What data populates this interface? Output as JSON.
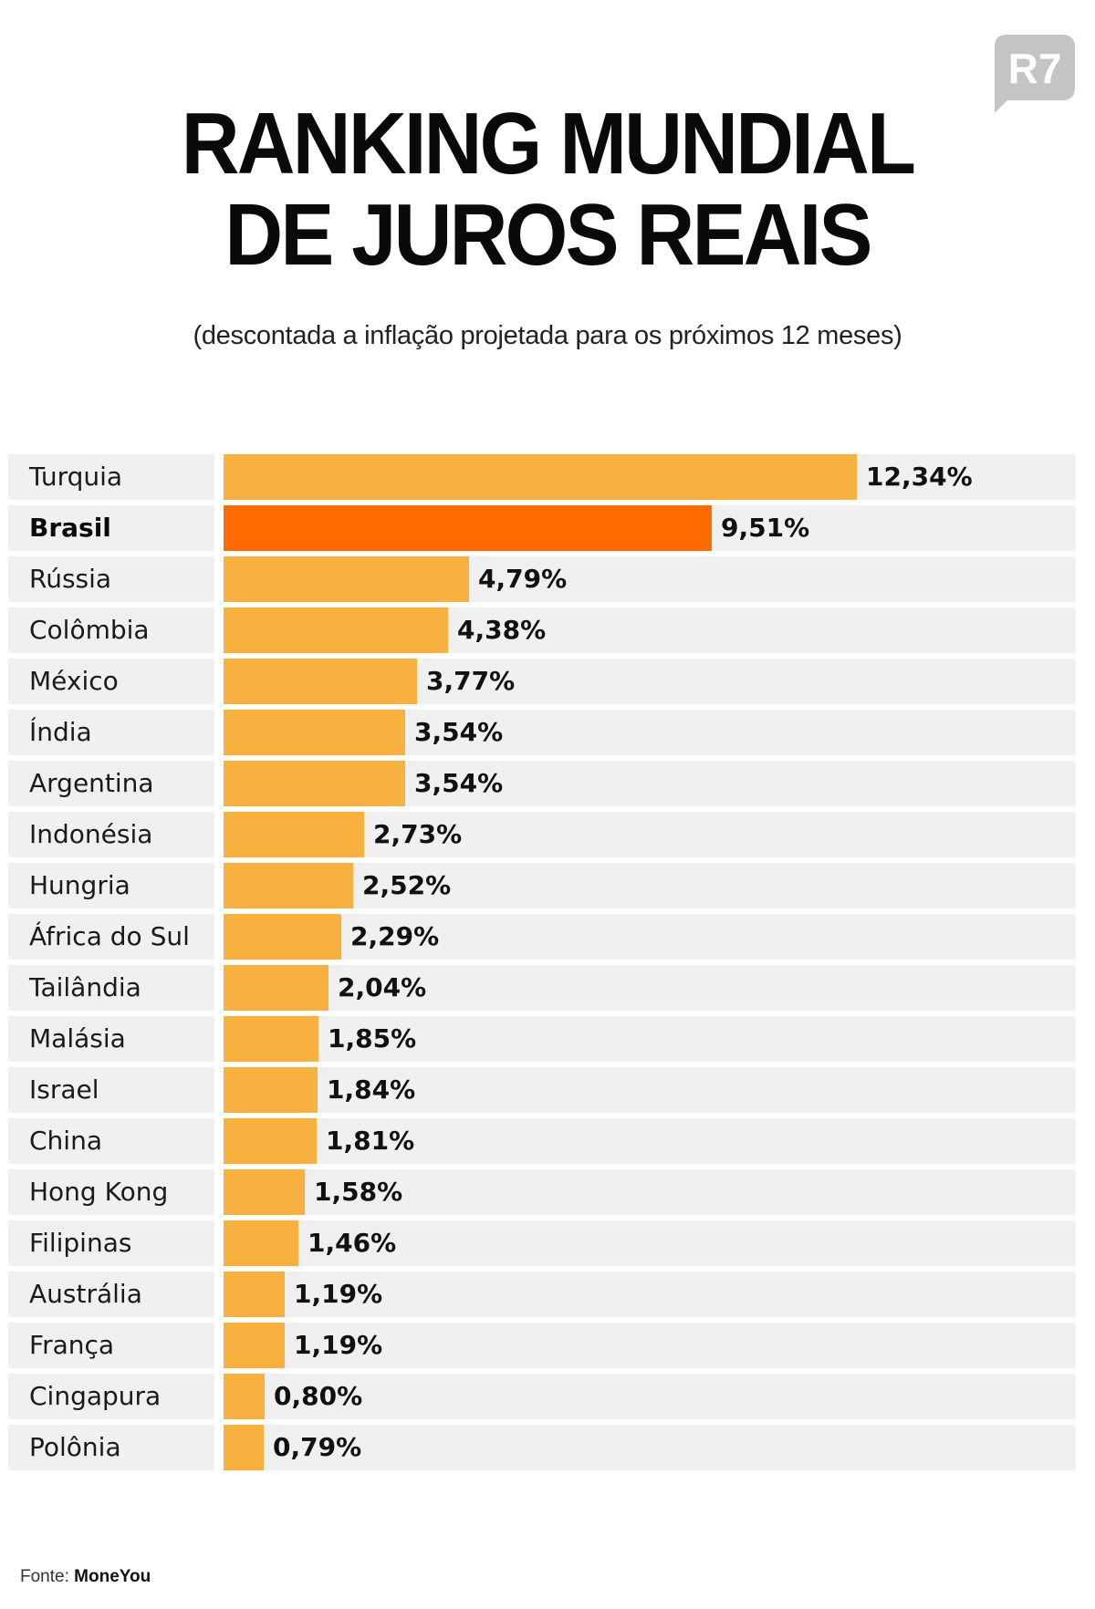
{
  "logo": {
    "text": "R7",
    "color": "#c4c4c4"
  },
  "header": {
    "title_line1": "RANKING MUNDIAL",
    "title_line2": "DE JUROS REAIS",
    "subtitle": "(descontada a inflação projetada para os próximos 12 meses)"
  },
  "colors": {
    "bar": "#f8b13e",
    "highlight_bar": "#ff6b00",
    "row_background": "#f0f0f0"
  },
  "chart_data": {
    "type": "bar",
    "orientation": "horizontal",
    "title": "RANKING MUNDIAL DE JUROS REAIS",
    "subtitle": "(descontada a inflação projetada para os próximos 12 meses)",
    "categories": [
      "Turquia",
      "Brasil",
      "Rússia",
      "Colômbia",
      "México",
      "Índia",
      "Argentina",
      "Indonésia",
      "Hungria",
      "África do Sul",
      "Tailândia",
      "Malásia",
      "Israel",
      "China",
      "Hong Kong",
      "Filipinas",
      "Austrália",
      "França",
      "Cingapura",
      "Polônia"
    ],
    "values": [
      12.34,
      9.51,
      4.79,
      4.38,
      3.77,
      3.54,
      3.54,
      2.73,
      2.52,
      2.29,
      2.04,
      1.85,
      1.84,
      1.81,
      1.58,
      1.46,
      1.19,
      1.19,
      0.8,
      0.79
    ],
    "value_labels": [
      "12,34%",
      "9,51%",
      "4,79%",
      "4,38%",
      "3,77%",
      "3,54%",
      "3,54%",
      "2,73%",
      "2,52%",
      "2,29%",
      "2,04%",
      "1,85%",
      "1,84%",
      "1,81%",
      "1,58%",
      "1,46%",
      "1,19%",
      "1,19%",
      "0,80%",
      "0,79%"
    ],
    "highlight": "Brasil",
    "xlim": [
      0,
      12.34
    ],
    "grid": false,
    "legend": "none"
  },
  "footer": {
    "source_label": "Fonte:",
    "source_name": "MoneYou"
  }
}
